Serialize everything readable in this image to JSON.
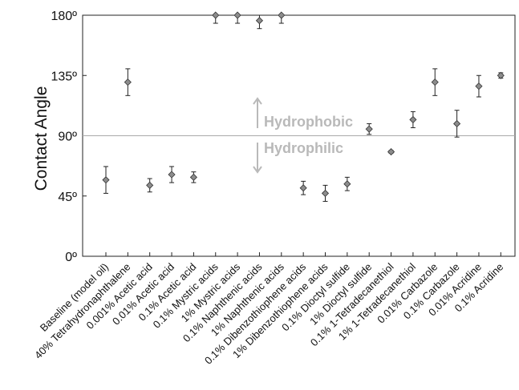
{
  "chart_data": {
    "type": "scatter",
    "ylabel": "Contact Angle",
    "ylim": [
      0,
      180
    ],
    "yticks": [
      "0º",
      "45º",
      "90º",
      "135º",
      "180º"
    ],
    "ytick_values": [
      0,
      45,
      90,
      135,
      180
    ],
    "reference_line": 90,
    "regions": {
      "above": "Hydrophobic",
      "below": "Hydrophilic"
    },
    "marker_color": "#8c8c8c",
    "gridline_color": "#aaaaaa",
    "region_text_color": "#b9b9b9",
    "categories": [
      "Baseline (model oil)",
      "40% Tetrahydronaphthalene",
      "0.001% Acetic acid",
      "0.01% Acetic acid",
      "0.1% Acetic acid",
      "0.1% Mystric acids",
      "1% Mystric acids",
      "0.1% Naphthenic acids",
      "1% Naphthenic acids",
      "0.1% Dibenzothiophene acids",
      "1% Dibenzothiophene acids",
      "0.1% Dioctyl sulfide",
      "1% Dioctyl sulfide",
      "0.1% 1-Tetradecanethiol",
      "1% 1-Tetradecanethiol",
      "0.01% Carbazole",
      "0.1% Carbazole",
      "0.01% Acridine",
      "0.1% Acridine"
    ],
    "values": [
      57,
      130,
      53,
      61,
      59,
      180,
      180,
      176,
      180,
      51,
      47,
      54,
      95,
      78,
      102,
      130,
      99,
      127,
      135
    ],
    "errors": [
      10,
      10,
      5,
      6,
      4,
      6,
      6,
      6,
      6,
      5,
      6,
      5,
      4,
      1,
      6,
      10,
      10,
      8,
      2
    ]
  }
}
